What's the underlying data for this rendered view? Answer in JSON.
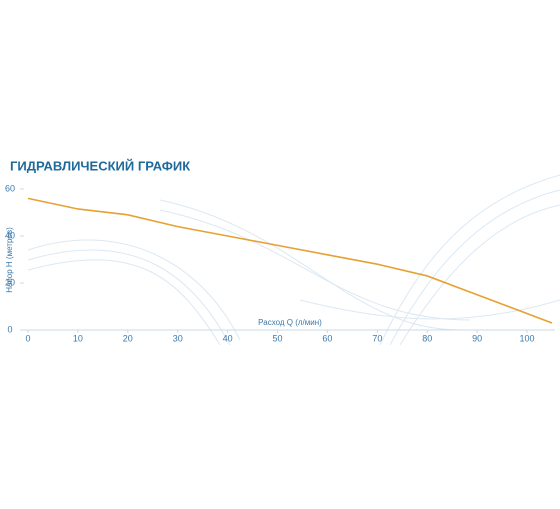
{
  "chart_data": {
    "type": "line",
    "title": "ГИДРАВЛИЧЕСКИЙ ГРАФИК",
    "x_label": "Расход Q (л/мин)",
    "y_label": "Напор H (метров)",
    "x": [
      0,
      10,
      20,
      30,
      40,
      50,
      60,
      70,
      80,
      90,
      105
    ],
    "series": [
      {
        "name": "Напор",
        "color": "#e6a133",
        "values": [
          56,
          51.5,
          49,
          44,
          40,
          36,
          32,
          28,
          23,
          15,
          3
        ]
      }
    ],
    "xlim": [
      0,
      106
    ],
    "ylim": [
      0,
      60
    ],
    "xticks": [
      0,
      10,
      20,
      30,
      40,
      50,
      60,
      70,
      80,
      90,
      100
    ],
    "yticks": [
      0,
      20,
      40,
      60
    ]
  }
}
